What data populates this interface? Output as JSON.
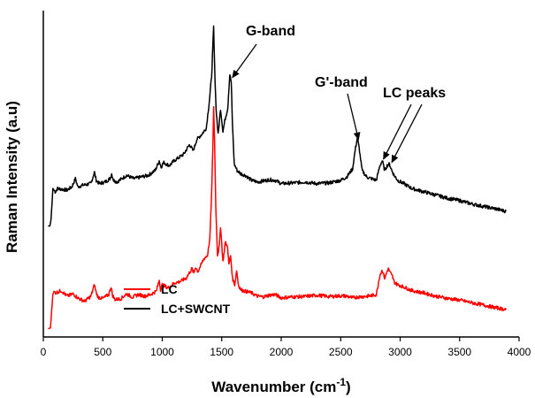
{
  "chart_data": {
    "type": "line",
    "xlabel": "Wavenumber (cm",
    "xlabel_superscript": "-1",
    "xlabel_suffix": ")",
    "ylabel": "Raman Intensity (a.u)",
    "xlim": [
      0,
      4000
    ],
    "ylim": [
      0,
      100
    ],
    "xticks": [
      0,
      500,
      1000,
      1500,
      2000,
      2500,
      3000,
      3500,
      4000
    ],
    "xtick_labels": [
      "0",
      "500",
      "1000",
      "1500",
      "2000",
      "2500",
      "3000",
      "3500",
      "4000"
    ],
    "grid": false,
    "legend_position": "bottom-left",
    "series": [
      {
        "name": "LC",
        "color": "#ff0000",
        "x": [
          40,
          60,
          70,
          80,
          90,
          100,
          150,
          200,
          250,
          300,
          350,
          400,
          430,
          445,
          460,
          500,
          550,
          570,
          580,
          600,
          650,
          700,
          750,
          800,
          850,
          900,
          950,
          975,
          985,
          1000,
          1050,
          1100,
          1150,
          1200,
          1250,
          1265,
          1280,
          1300,
          1350,
          1380,
          1400,
          1415,
          1425,
          1432,
          1440,
          1450,
          1465,
          1480,
          1490,
          1500,
          1510,
          1530,
          1550,
          1560,
          1575,
          1590,
          1610,
          1625,
          1640,
          1660,
          1700,
          1750,
          1800,
          1850,
          1900,
          1950,
          2000,
          2100,
          2200,
          2300,
          2400,
          2500,
          2550,
          2600,
          2650,
          2700,
          2750,
          2800,
          2830,
          2850,
          2870,
          2880,
          2900,
          2920,
          2935,
          2950,
          2980,
          3000,
          3050,
          3100,
          3200,
          3300,
          3400,
          3500,
          3600,
          3700,
          3800,
          3890
        ],
        "values": [
          2.5,
          2.8,
          8.0,
          13.0,
          14.0,
          13.5,
          14.2,
          12.5,
          13.2,
          11.7,
          11.0,
          12.5,
          16.0,
          13.5,
          12.2,
          11.8,
          13.0,
          15.5,
          13.0,
          11.5,
          11.7,
          13.2,
          12.2,
          13.0,
          12.5,
          13.0,
          14.0,
          17.5,
          14.5,
          16.0,
          15.0,
          16.5,
          17.0,
          18.0,
          21.0,
          19.5,
          21.5,
          20.0,
          24.0,
          25.0,
          30.0,
          44.0,
          58.0,
          70.5,
          60.0,
          40.0,
          25.0,
          28.0,
          34.0,
          28.5,
          23.0,
          29.0,
          27.5,
          22.0,
          25.0,
          18.0,
          16.0,
          20.5,
          16.0,
          14.5,
          14.0,
          13.5,
          12.5,
          12.3,
          12.8,
          13.0,
          12.0,
          12.3,
          12.4,
          12.8,
          12.4,
          12.6,
          12.5,
          12.0,
          12.3,
          12.4,
          12.6,
          13.0,
          19.0,
          20.5,
          18.0,
          19.0,
          21.0,
          19.5,
          18.5,
          16.8,
          16.0,
          15.8,
          15.0,
          14.2,
          13.5,
          12.5,
          11.8,
          11.3,
          10.5,
          9.8,
          9.0,
          8.4
        ]
      },
      {
        "name": "LC+SWCNT",
        "color": "#000000",
        "x": [
          40,
          55,
          65,
          80,
          100,
          120,
          200,
          240,
          270,
          290,
          330,
          400,
          430,
          445,
          470,
          520,
          560,
          575,
          590,
          620,
          700,
          760,
          820,
          880,
          940,
          975,
          990,
          1010,
          1060,
          1100,
          1140,
          1180,
          1230,
          1260,
          1290,
          1330,
          1370,
          1395,
          1415,
          1425,
          1432,
          1440,
          1452,
          1470,
          1490,
          1510,
          1530,
          1550,
          1568,
          1580,
          1590,
          1605,
          1630,
          1660,
          1700,
          1750,
          1800,
          1850,
          1900,
          1950,
          2000,
          2100,
          2200,
          2300,
          2400,
          2500,
          2550,
          2600,
          2625,
          2640,
          2655,
          2680,
          2720,
          2760,
          2800,
          2830,
          2850,
          2870,
          2890,
          2910,
          2930,
          2950,
          2980,
          3030,
          3100,
          3200,
          3300,
          3400,
          3500,
          3600,
          3700,
          3800,
          3890
        ],
        "values": [
          34.0,
          34.0,
          36.0,
          45.5,
          44.5,
          45.5,
          45.0,
          46.0,
          48.5,
          46.0,
          46.5,
          47.0,
          50.5,
          48.0,
          47.0,
          47.5,
          48.5,
          50.0,
          48.0,
          47.5,
          49.5,
          48.5,
          49.0,
          49.5,
          51.0,
          54.0,
          52.0,
          53.5,
          52.5,
          54.0,
          55.0,
          56.0,
          59.0,
          57.0,
          60.5,
          62.0,
          64.0,
          72.0,
          80.0,
          89.0,
          95.0,
          83.0,
          70.0,
          62.0,
          70.0,
          63.0,
          67.0,
          70.0,
          80.5,
          78.0,
          65.0,
          53.0,
          51.0,
          50.0,
          49.5,
          48.0,
          47.5,
          47.8,
          48.2,
          48.0,
          47.0,
          47.2,
          47.5,
          47.0,
          47.2,
          48.0,
          49.0,
          51.5,
          58.0,
          61.0,
          58.0,
          51.0,
          49.0,
          48.5,
          48.0,
          52.5,
          54.0,
          51.0,
          52.5,
          53.0,
          51.0,
          49.5,
          48.0,
          47.0,
          45.5,
          44.5,
          43.5,
          42.5,
          41.8,
          40.8,
          40.0,
          39.3,
          38.5
        ]
      }
    ],
    "annotations": [
      {
        "text": "G-band",
        "arrow_to": [
          1590,
          79.5
        ]
      },
      {
        "text": "G'-band",
        "arrow_to": [
          2650,
          60.5
        ]
      },
      {
        "text": "LC peaks",
        "arrow_to": [
          2860,
          54.5
        ]
      },
      {
        "text": "",
        "arrow_to": [
          2930,
          53.5
        ]
      }
    ]
  }
}
